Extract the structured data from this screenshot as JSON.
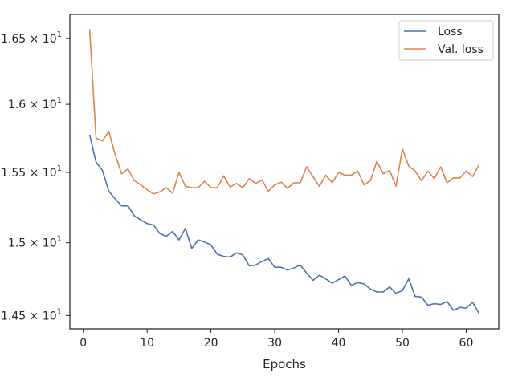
{
  "chart_data": {
    "type": "line",
    "title": "",
    "xlabel": "Epochs",
    "ylabel": "",
    "yscale": "log",
    "grid": false,
    "legend_position": "top-right",
    "xlim": [
      -2.1,
      65.1
    ],
    "ylim": [
      14.41,
      16.685
    ],
    "x_ticks": [
      0,
      10,
      20,
      30,
      40,
      50,
      60
    ],
    "x_tick_labels": [
      "0",
      "10",
      "20",
      "30",
      "40",
      "50",
      "60"
    ],
    "y_ticks": [
      14.5,
      15.0,
      15.5,
      16.0,
      16.5
    ],
    "y_tick_labels": [
      {
        "base": "1.45 × 10",
        "exp": "1"
      },
      {
        "base": "1.5 × 10",
        "exp": "1"
      },
      {
        "base": "1.55 × 10",
        "exp": "1"
      },
      {
        "base": "1.6 × 10",
        "exp": "1"
      },
      {
        "base": "1.65 × 10",
        "exp": "1"
      }
    ],
    "x": [
      1,
      2,
      3,
      4,
      5,
      6,
      7,
      8,
      9,
      10,
      11,
      12,
      13,
      14,
      15,
      16,
      17,
      18,
      19,
      20,
      21,
      22,
      23,
      24,
      25,
      26,
      27,
      28,
      29,
      30,
      31,
      32,
      33,
      34,
      35,
      36,
      37,
      38,
      39,
      40,
      41,
      42,
      43,
      44,
      45,
      46,
      47,
      48,
      49,
      50,
      51,
      52,
      53,
      54,
      55,
      56,
      57,
      58,
      59,
      60,
      61,
      62
    ],
    "series": [
      {
        "name": "Loss",
        "color": "#4c72b0",
        "values": [
          15.775,
          15.575,
          15.515,
          15.365,
          15.31,
          15.26,
          15.26,
          15.19,
          15.16,
          15.135,
          15.125,
          15.065,
          15.045,
          15.08,
          15.02,
          15.1,
          14.96,
          15.02,
          15.005,
          14.985,
          14.92,
          14.905,
          14.9,
          14.93,
          14.915,
          14.84,
          14.845,
          14.87,
          14.89,
          14.83,
          14.83,
          14.81,
          14.825,
          14.845,
          14.79,
          14.74,
          14.775,
          14.75,
          14.72,
          14.745,
          14.77,
          14.705,
          14.725,
          14.715,
          14.68,
          14.66,
          14.66,
          14.695,
          14.65,
          14.67,
          14.75,
          14.63,
          14.625,
          14.57,
          14.58,
          14.575,
          14.595,
          14.535,
          14.555,
          14.55,
          14.59,
          14.515
        ]
      },
      {
        "name": "Val. loss",
        "color": "#dd8452",
        "values": [
          16.57,
          15.75,
          15.73,
          15.8,
          15.63,
          15.49,
          15.525,
          15.44,
          15.41,
          15.375,
          15.345,
          15.36,
          15.39,
          15.35,
          15.5,
          15.4,
          15.39,
          15.39,
          15.435,
          15.39,
          15.39,
          15.475,
          15.395,
          15.42,
          15.39,
          15.455,
          15.42,
          15.445,
          15.365,
          15.41,
          15.43,
          15.385,
          15.425,
          15.425,
          15.54,
          15.47,
          15.4,
          15.48,
          15.425,
          15.5,
          15.48,
          15.48,
          15.51,
          15.41,
          15.44,
          15.58,
          15.49,
          15.515,
          15.4,
          15.67,
          15.545,
          15.51,
          15.44,
          15.51,
          15.455,
          15.54,
          15.425,
          15.46,
          15.46,
          15.51,
          15.47,
          15.555
        ]
      }
    ]
  }
}
